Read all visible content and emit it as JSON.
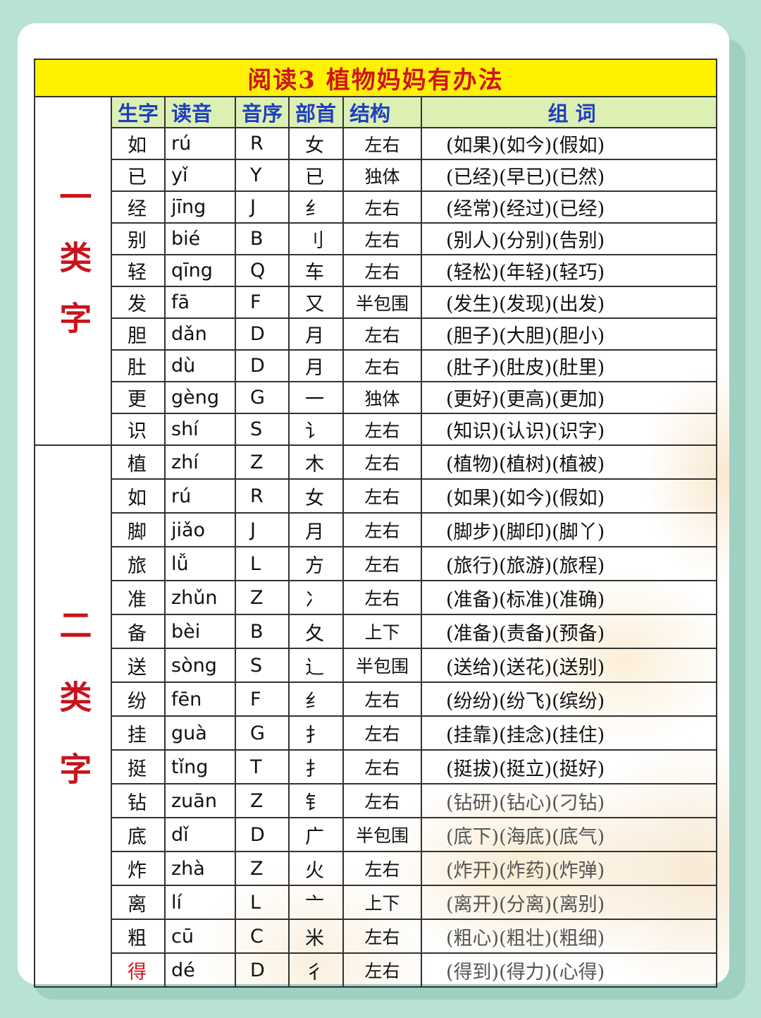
{
  "title": "阅读3  植物妈妈有办法",
  "headers": {
    "char": "生字",
    "pinyin": "读音",
    "index": "音序",
    "radical": "部首",
    "structure": "结构",
    "words": "组 词"
  },
  "accent_colors": {
    "title_bg": "#fff200",
    "title_text": "#d0141c",
    "header_bg": "#dcf0b4",
    "header_text": "#1f3fbf"
  },
  "sections": [
    {
      "label": "一类字",
      "rows": [
        {
          "char": "如",
          "pinyin": "rú",
          "index": "R",
          "radical": "女",
          "structure": "左右",
          "words": "(如果)(如今)(假如)"
        },
        {
          "char": "已",
          "pinyin": "yǐ",
          "index": "Y",
          "radical": "已",
          "structure": "独体",
          "words": "(已经)(早已)(已然)"
        },
        {
          "char": "经",
          "pinyin": "jīng",
          "index": "J",
          "radical": "纟",
          "structure": "左右",
          "words": "(经常)(经过)(已经)"
        },
        {
          "char": "别",
          "pinyin": "bié",
          "index": "B",
          "radical": "刂",
          "structure": "左右",
          "words": "(别人)(分别)(告别)"
        },
        {
          "char": "轻",
          "pinyin": "qīng",
          "index": "Q",
          "radical": "车",
          "structure": "左右",
          "words": "(轻松)(年轻)(轻巧)"
        },
        {
          "char": "发",
          "pinyin": "fā",
          "index": "F",
          "radical": "又",
          "structure": "半包围",
          "words": "(发生)(发现)(出发)"
        },
        {
          "char": "胆",
          "pinyin": "dǎn",
          "index": "D",
          "radical": "月",
          "structure": "左右",
          "words": "(胆子)(大胆)(胆小)"
        },
        {
          "char": "肚",
          "pinyin": "dù",
          "index": "D",
          "radical": "月",
          "structure": "左右",
          "words": "(肚子)(肚皮)(肚里)"
        },
        {
          "char": "更",
          "pinyin": "gèng",
          "index": "G",
          "radical": "一",
          "structure": "独体",
          "words": "(更好)(更高)(更加)"
        },
        {
          "char": "识",
          "pinyin": "shí",
          "index": "S",
          "radical": "讠",
          "structure": "左右",
          "words": "(知识)(认识)(识字)"
        }
      ]
    },
    {
      "label": "二类字",
      "rows": [
        {
          "char": "植",
          "pinyin": "zhí",
          "index": "Z",
          "radical": "木",
          "structure": "左右",
          "words": "(植物)(植树)(植被)"
        },
        {
          "char": "如",
          "pinyin": "rú",
          "index": "R",
          "radical": "女",
          "structure": "左右",
          "words": "(如果)(如今)(假如)"
        },
        {
          "char": "脚",
          "pinyin": "jiǎo",
          "index": "J",
          "radical": "月",
          "structure": "左右",
          "words": "(脚步)(脚印)(脚丫)"
        },
        {
          "char": "旅",
          "pinyin": "lǚ",
          "index": "L",
          "radical": "方",
          "structure": "左右",
          "words": "(旅行)(旅游)(旅程)"
        },
        {
          "char": "准",
          "pinyin": "zhǔn",
          "index": "Z",
          "radical": "冫",
          "structure": "左右",
          "words": "(准备)(标准)(准确)"
        },
        {
          "char": "备",
          "pinyin": "bèi",
          "index": "B",
          "radical": "夂",
          "structure": "上下",
          "words": "(准备)(责备)(预备)"
        },
        {
          "char": "送",
          "pinyin": "sòng",
          "index": "S",
          "radical": "辶",
          "structure": "半包围",
          "words": "(送给)(送花)(送别)"
        },
        {
          "char": "纷",
          "pinyin": "fēn",
          "index": "F",
          "radical": "纟",
          "structure": "左右",
          "words": "(纷纷)(纷飞)(缤纷)"
        },
        {
          "char": "挂",
          "pinyin": "guà",
          "index": "G",
          "radical": "扌",
          "structure": "左右",
          "words": "(挂靠)(挂念)(挂住)"
        },
        {
          "char": "挺",
          "pinyin": "tǐng",
          "index": "T",
          "radical": "扌",
          "structure": "左右",
          "words": "(挺拔)(挺立)(挺好)"
        },
        {
          "char": "钻",
          "pinyin": "zuān",
          "index": "Z",
          "radical": "钅",
          "structure": "左右",
          "words": "(钻研)(钻心)(刁钻)"
        },
        {
          "char": "底",
          "pinyin": "dǐ",
          "index": "D",
          "radical": "广",
          "structure": "半包围",
          "words": "(底下)(海底)(底气)"
        },
        {
          "char": "炸",
          "pinyin": "zhà",
          "index": "Z",
          "radical": "火",
          "structure": "左右",
          "words": "(炸开)(炸药)(炸弹)"
        },
        {
          "char": "离",
          "pinyin": "lí",
          "index": "L",
          "radical": "亠",
          "structure": "上下",
          "words": "(离开)(分离)(离别)"
        },
        {
          "char": "粗",
          "pinyin": "cū",
          "index": "C",
          "radical": "米",
          "structure": "左右",
          "words": "(粗心)(粗壮)(粗细)"
        },
        {
          "char": "得",
          "pinyin": "dé",
          "index": "D",
          "radical": "彳",
          "structure": "左右",
          "words": "(得到)(得力)(心得)",
          "highlight": true
        }
      ]
    }
  ]
}
